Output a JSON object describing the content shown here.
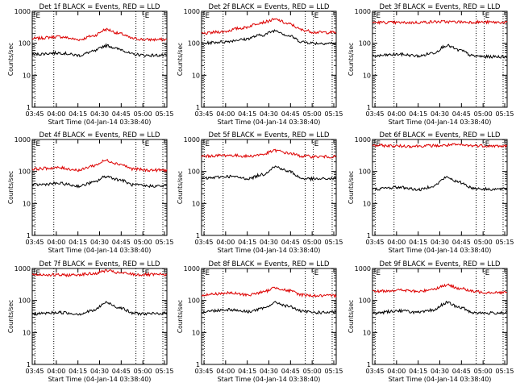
{
  "chart_data": [
    {
      "type": "line",
      "title": "Det 1f BLACK = Events, RED = LLD",
      "xlabel": "Start Time (04-Jan-14 03:38:40)",
      "ylabel": "Counts/sec",
      "ylog": true,
      "ylim": [
        1,
        1000
      ],
      "yticks": [
        "1",
        "10",
        "100",
        "1000"
      ],
      "xlim": [
        0,
        100
      ],
      "xticks": [
        "03:45",
        "04:00",
        "04:15",
        "04:30",
        "04:45",
        "05:00",
        "05:15"
      ],
      "markers": [
        {
          "x": 2,
          "label": "E"
        },
        {
          "x": 16,
          "label": ""
        },
        {
          "x": 77,
          "label": ""
        },
        {
          "x": 83,
          "label": "E"
        },
        {
          "x": 97,
          "label": ""
        }
      ],
      "series": [
        {
          "name": "LLD",
          "color": "#dd0000",
          "x": [
            0,
            20,
            35,
            45,
            55,
            65,
            75,
            85,
            100
          ],
          "y": [
            140,
            160,
            130,
            170,
            270,
            200,
            140,
            130,
            130
          ]
        },
        {
          "name": "Events",
          "color": "#000000",
          "x": [
            0,
            20,
            35,
            45,
            55,
            65,
            75,
            85,
            100
          ],
          "y": [
            45,
            50,
            42,
            55,
            85,
            65,
            45,
            42,
            42
          ]
        }
      ]
    },
    {
      "type": "line",
      "title": "Det 2f BLACK = Events, RED = LLD",
      "xlabel": "Start Time (04-Jan-14 03:38:40)",
      "ylabel": "Counts/sec",
      "ylog": true,
      "ylim": [
        1,
        1000
      ],
      "yticks": [
        "1",
        "10",
        "100",
        "1000"
      ],
      "xlim": [
        0,
        100
      ],
      "xticks": [
        "03:45",
        "04:00",
        "04:15",
        "04:30",
        "04:45",
        "05:00",
        "05:15"
      ],
      "markers": [
        {
          "x": 2,
          "label": "E"
        },
        {
          "x": 16,
          "label": ""
        },
        {
          "x": 77,
          "label": ""
        },
        {
          "x": 83,
          "label": "E"
        },
        {
          "x": 97,
          "label": ""
        }
      ],
      "series": [
        {
          "name": "LLD",
          "color": "#dd0000",
          "x": [
            0,
            15,
            30,
            45,
            55,
            65,
            75,
            85,
            100
          ],
          "y": [
            200,
            230,
            300,
            450,
            550,
            400,
            260,
            220,
            220
          ]
        },
        {
          "name": "Events",
          "color": "#000000",
          "x": [
            0,
            15,
            30,
            45,
            55,
            65,
            75,
            85,
            100
          ],
          "y": [
            100,
            110,
            130,
            180,
            250,
            170,
            110,
            100,
            100
          ]
        }
      ]
    },
    {
      "type": "line",
      "title": "Det 3f BLACK = Events, RED = LLD",
      "xlabel": "Start Time (04-Jan-14 03:38:40)",
      "ylabel": "Counts/sec",
      "ylog": true,
      "ylim": [
        1,
        1000
      ],
      "yticks": [
        "1",
        "10",
        "100",
        "1000"
      ],
      "xlim": [
        0,
        100
      ],
      "xticks": [
        "03:45",
        "04:00",
        "04:15",
        "04:30",
        "04:45",
        "05:00",
        "05:15"
      ],
      "markers": [
        {
          "x": 2,
          "label": "E"
        },
        {
          "x": 16,
          "label": ""
        },
        {
          "x": 77,
          "label": ""
        },
        {
          "x": 83,
          "label": "E"
        },
        {
          "x": 97,
          "label": ""
        }
      ],
      "series": [
        {
          "name": "LLD",
          "color": "#dd0000",
          "x": [
            0,
            25,
            50,
            75,
            100
          ],
          "y": [
            450,
            440,
            470,
            460,
            450
          ]
        },
        {
          "name": "Events",
          "color": "#000000",
          "x": [
            0,
            20,
            35,
            45,
            55,
            65,
            75,
            85,
            100
          ],
          "y": [
            40,
            45,
            40,
            50,
            85,
            60,
            40,
            38,
            38
          ]
        }
      ]
    },
    {
      "type": "line",
      "title": "Det 4f BLACK = Events, RED = LLD",
      "xlabel": "Start Time (04-Jan-14 03:38:40)",
      "ylabel": "Counts/sec",
      "ylog": true,
      "ylim": [
        1,
        1000
      ],
      "yticks": [
        "1",
        "10",
        "100",
        "1000"
      ],
      "xlim": [
        0,
        100
      ],
      "xticks": [
        "03:45",
        "04:00",
        "04:15",
        "04:30",
        "04:45",
        "05:00",
        "05:15"
      ],
      "markers": [
        {
          "x": 2,
          "label": "E"
        },
        {
          "x": 16,
          "label": ""
        },
        {
          "x": 77,
          "label": ""
        },
        {
          "x": 83,
          "label": "E"
        },
        {
          "x": 97,
          "label": ""
        }
      ],
      "series": [
        {
          "name": "LLD",
          "color": "#dd0000",
          "x": [
            0,
            20,
            35,
            45,
            55,
            65,
            75,
            85,
            100
          ],
          "y": [
            120,
            130,
            110,
            150,
            220,
            170,
            120,
            110,
            110
          ]
        },
        {
          "name": "Events",
          "color": "#000000",
          "x": [
            0,
            20,
            35,
            45,
            55,
            65,
            75,
            85,
            100
          ],
          "y": [
            38,
            42,
            35,
            45,
            70,
            55,
            38,
            35,
            35
          ]
        }
      ]
    },
    {
      "type": "line",
      "title": "Det 5f BLACK = Events, RED = LLD",
      "xlabel": "Start Time (04-Jan-14 03:38:40)",
      "ylabel": "Counts/sec",
      "ylog": true,
      "ylim": [
        1,
        1000
      ],
      "yticks": [
        "1",
        "10",
        "100",
        "1000"
      ],
      "xlim": [
        0,
        100
      ],
      "xticks": [
        "03:45",
        "04:00",
        "04:15",
        "04:30",
        "04:45",
        "05:00",
        "05:15"
      ],
      "markers": [
        {
          "x": 2,
          "label": "E"
        },
        {
          "x": 16,
          "label": ""
        },
        {
          "x": 77,
          "label": ""
        },
        {
          "x": 83,
          "label": "E"
        },
        {
          "x": 97,
          "label": ""
        }
      ],
      "series": [
        {
          "name": "LLD",
          "color": "#dd0000",
          "x": [
            0,
            20,
            35,
            45,
            55,
            65,
            75,
            85,
            100
          ],
          "y": [
            300,
            320,
            300,
            340,
            450,
            370,
            300,
            290,
            290
          ]
        },
        {
          "name": "Events",
          "color": "#000000",
          "x": [
            0,
            20,
            35,
            45,
            55,
            65,
            75,
            85,
            100
          ],
          "y": [
            60,
            70,
            60,
            80,
            140,
            100,
            60,
            58,
            60
          ]
        }
      ]
    },
    {
      "type": "line",
      "title": "Det 6f BLACK = Events, RED = LLD",
      "xlabel": "Start Time (04-Jan-14 03:38:40)",
      "ylabel": "Counts/sec",
      "ylog": true,
      "ylim": [
        1,
        1000
      ],
      "yticks": [
        "1",
        "10",
        "100",
        "1000"
      ],
      "xlim": [
        0,
        100
      ],
      "xticks": [
        "03:45",
        "04:00",
        "04:15",
        "04:30",
        "04:45",
        "05:00",
        "05:15"
      ],
      "markers": [
        {
          "x": 2,
          "label": "E"
        },
        {
          "x": 16,
          "label": ""
        },
        {
          "x": 77,
          "label": ""
        },
        {
          "x": 83,
          "label": "E"
        },
        {
          "x": 97,
          "label": ""
        }
      ],
      "series": [
        {
          "name": "LLD",
          "color": "#dd0000",
          "x": [
            0,
            25,
            50,
            60,
            75,
            100
          ],
          "y": [
            650,
            620,
            640,
            680,
            640,
            620
          ]
        },
        {
          "name": "Events",
          "color": "#000000",
          "x": [
            0,
            20,
            35,
            45,
            55,
            65,
            75,
            85,
            100
          ],
          "y": [
            28,
            32,
            27,
            35,
            65,
            45,
            30,
            28,
            28
          ]
        }
      ]
    },
    {
      "type": "line",
      "title": "Det 7f BLACK = Events, RED = LLD",
      "xlabel": "Start Time (04-Jan-14 03:38:40)",
      "ylabel": "Counts/sec",
      "ylog": true,
      "ylim": [
        1,
        1000
      ],
      "yticks": [
        "1",
        "10",
        "100",
        "1000"
      ],
      "xlim": [
        0,
        100
      ],
      "xticks": [
        "03:45",
        "04:00",
        "04:15",
        "04:30",
        "04:45",
        "05:00",
        "05:15"
      ],
      "markers": [
        {
          "x": 2,
          "label": "E"
        },
        {
          "x": 16,
          "label": ""
        },
        {
          "x": 77,
          "label": ""
        },
        {
          "x": 83,
          "label": "E"
        },
        {
          "x": 97,
          "label": ""
        }
      ],
      "series": [
        {
          "name": "LLD",
          "color": "#dd0000",
          "x": [
            0,
            25,
            45,
            55,
            65,
            80,
            100
          ],
          "y": [
            650,
            620,
            680,
            850,
            720,
            640,
            640
          ]
        },
        {
          "name": "Events",
          "color": "#000000",
          "x": [
            0,
            20,
            35,
            45,
            55,
            65,
            75,
            85,
            100
          ],
          "y": [
            38,
            42,
            38,
            48,
            85,
            60,
            40,
            38,
            40
          ]
        }
      ]
    },
    {
      "type": "line",
      "title": "Det 8f BLACK = Events, RED = LLD",
      "xlabel": "Start Time (04-Jan-14 03:38:40)",
      "ylabel": "Counts/sec",
      "ylog": true,
      "ylim": [
        1,
        1000
      ],
      "yticks": [
        "1",
        "10",
        "100",
        "1000"
      ],
      "xlim": [
        0,
        100
      ],
      "xticks": [
        "03:45",
        "04:00",
        "04:15",
        "04:30",
        "04:45",
        "05:00",
        "05:15"
      ],
      "markers": [
        {
          "x": 2,
          "label": "E"
        },
        {
          "x": 16,
          "label": ""
        },
        {
          "x": 77,
          "label": ""
        },
        {
          "x": 83,
          "label": "E"
        },
        {
          "x": 97,
          "label": ""
        }
      ],
      "series": [
        {
          "name": "LLD",
          "color": "#dd0000",
          "x": [
            0,
            20,
            35,
            45,
            55,
            65,
            75,
            85,
            100
          ],
          "y": [
            150,
            170,
            150,
            180,
            250,
            200,
            150,
            140,
            140
          ]
        },
        {
          "name": "Events",
          "color": "#000000",
          "x": [
            0,
            20,
            35,
            45,
            55,
            65,
            75,
            85,
            100
          ],
          "y": [
            45,
            52,
            45,
            55,
            85,
            65,
            45,
            42,
            42
          ]
        }
      ]
    },
    {
      "type": "line",
      "title": "Det 9f BLACK = Events, RED = LLD",
      "xlabel": "Start Time (04-Jan-14 03:38:40)",
      "ylabel": "Counts/sec",
      "ylog": true,
      "ylim": [
        1,
        1000
      ],
      "yticks": [
        "1",
        "10",
        "100",
        "1000"
      ],
      "xlim": [
        0,
        100
      ],
      "xticks": [
        "03:45",
        "04:00",
        "04:15",
        "04:30",
        "04:45",
        "05:00",
        "05:15"
      ],
      "markers": [
        {
          "x": 2,
          "label": "E"
        },
        {
          "x": 16,
          "label": ""
        },
        {
          "x": 77,
          "label": ""
        },
        {
          "x": 83,
          "label": "E"
        },
        {
          "x": 97,
          "label": ""
        }
      ],
      "series": [
        {
          "name": "LLD",
          "color": "#dd0000",
          "x": [
            0,
            20,
            35,
            45,
            55,
            65,
            75,
            85,
            100
          ],
          "y": [
            190,
            210,
            190,
            230,
            300,
            240,
            190,
            180,
            180
          ]
        },
        {
          "name": "Events",
          "color": "#000000",
          "x": [
            0,
            20,
            35,
            45,
            55,
            65,
            75,
            85,
            100
          ],
          "y": [
            40,
            48,
            42,
            50,
            85,
            60,
            42,
            40,
            42
          ]
        }
      ]
    }
  ]
}
